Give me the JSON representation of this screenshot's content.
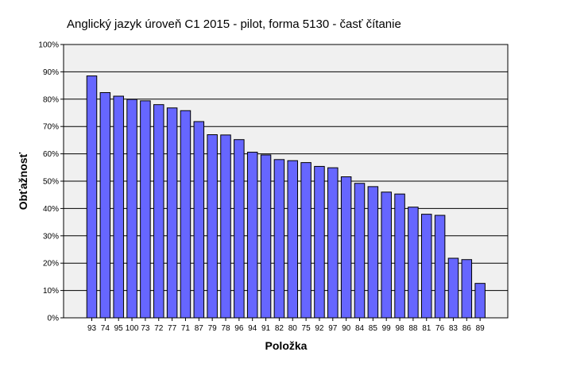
{
  "chart_data": {
    "type": "bar",
    "title": "Anglický jazyk úroveň C1 2015 - pilot, forma 5130 - časť čítanie",
    "xlabel": "Položka",
    "ylabel": "Obťažnosť",
    "ylim": [
      0,
      100
    ],
    "yticks": [
      "0%",
      "10%",
      "20%",
      "30%",
      "40%",
      "50%",
      "60%",
      "70%",
      "80%",
      "90%",
      "100%"
    ],
    "grid": true,
    "categories": [
      "93",
      "74",
      "95",
      "100",
      "73",
      "72",
      "77",
      "71",
      "87",
      "79",
      "78",
      "96",
      "94",
      "91",
      "82",
      "80",
      "75",
      "92",
      "97",
      "90",
      "84",
      "85",
      "99",
      "98",
      "88",
      "81",
      "76",
      "83",
      "86",
      "89"
    ],
    "values": [
      88.5,
      82.4,
      81.1,
      79.9,
      79.4,
      78.0,
      76.8,
      75.8,
      71.8,
      67.0,
      66.9,
      65.2,
      60.6,
      59.6,
      57.9,
      57.5,
      56.8,
      55.4,
      54.9,
      51.6,
      49.2,
      48.0,
      46.0,
      45.3,
      40.5,
      37.9,
      37.5,
      21.8,
      21.3,
      12.6
    ],
    "colors": {
      "bar_fill": "#6666ff",
      "bar_stroke": "#000000",
      "plot_background": "#f0f0f0",
      "grid": "#000000"
    }
  }
}
